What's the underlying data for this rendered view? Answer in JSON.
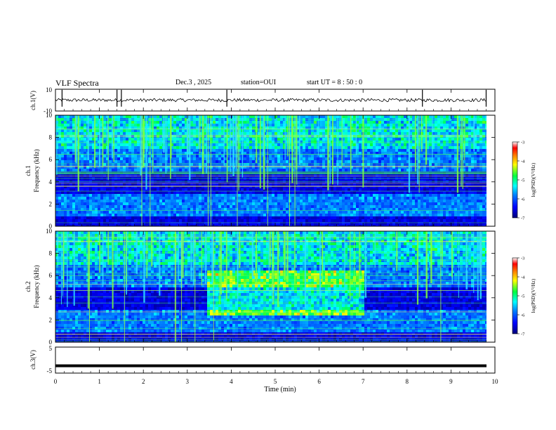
{
  "header": {
    "title": "VLF Spectra",
    "date": "Dec.3  , 2025",
    "station": "station=OUI",
    "start": "start  UT  =   8  : 50 : 0"
  },
  "chart_data": [
    {
      "type": "line",
      "panel": "ch1-waveform",
      "ylabel": "ch.1(V)",
      "ylim": [
        -10,
        10
      ],
      "yticks": [
        "10",
        "-10"
      ],
      "description_level": 0,
      "spikes_min": [
        0.15,
        1.4,
        1.5,
        3.9,
        8.35,
        9.8
      ]
    },
    {
      "type": "heatmap",
      "panel": "ch1-spectrogram",
      "ylabel": "ch.1\nFrequency  (kHz)",
      "ylim": [
        0,
        10
      ],
      "yticks": [
        "0",
        "2",
        "4",
        "6",
        "8",
        "10"
      ],
      "colorbar": {
        "label": "log(PSD)(V²/Hz)",
        "range": [
          -7,
          -3
        ],
        "ticks": [
          "-3",
          "-4",
          "-5",
          "-6",
          "-7"
        ]
      }
    },
    {
      "type": "heatmap",
      "panel": "ch2-spectrogram",
      "ylabel": "ch.2\nFrequency  (kHz)",
      "ylim": [
        0,
        10
      ],
      "yticks": [
        "0",
        "2",
        "4",
        "6",
        "8",
        "10"
      ],
      "colorbar": {
        "label": "log(PSD)(V²/Hz)",
        "range": [
          -7,
          -3
        ],
        "ticks": [
          "-3",
          "-4",
          "-5",
          "-6",
          "-7"
        ]
      },
      "enhancement_min": [
        3.4,
        7.0
      ],
      "enhancement_khz": [
        2.5,
        6.5
      ]
    },
    {
      "type": "line",
      "panel": "ch3-waveform",
      "ylabel": "ch.3(V)",
      "ylim": [
        -5,
        5
      ],
      "yticks": [
        "5",
        "-5"
      ],
      "level": -2.2
    }
  ],
  "xaxis": {
    "label": "Time  (min)",
    "xlim": [
      0,
      10
    ],
    "ticks": [
      "0",
      "1",
      "2",
      "3",
      "4",
      "5",
      "6",
      "7",
      "8",
      "9",
      "10"
    ]
  },
  "colors": {
    "colormap": [
      "#00007a",
      "#0000ff",
      "#0080ff",
      "#00ffff",
      "#00ff40",
      "#ffff00",
      "#ff8000",
      "#ff0000",
      "#ffffff"
    ]
  }
}
